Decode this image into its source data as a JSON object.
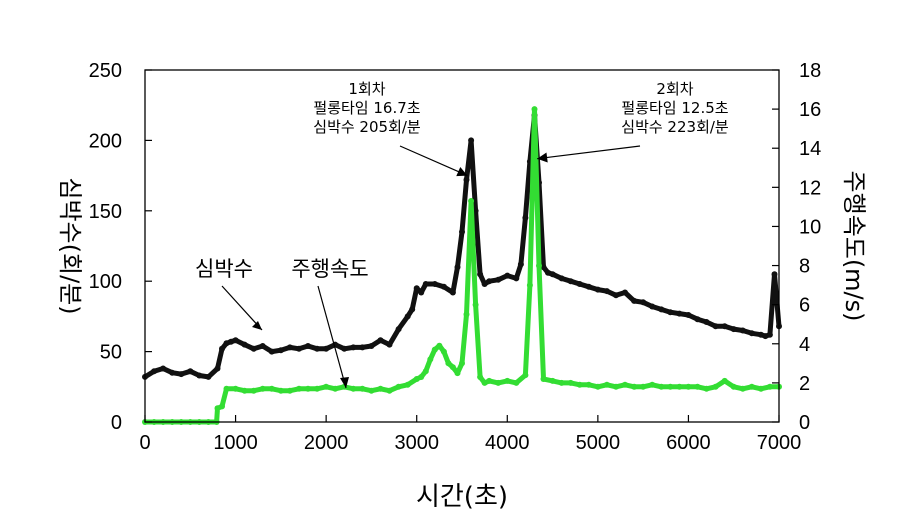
{
  "chart_data": {
    "type": "scatter",
    "xlabel": "시간(초)",
    "ylabel_left": "심박수(회/분)",
    "ylabel_right": "주행속도(m/s)",
    "xlim": [
      0,
      7000
    ],
    "ylim_left": [
      0,
      250
    ],
    "ylim_right": [
      0,
      18
    ],
    "xticks": [
      "0",
      "1000",
      "2000",
      "3000",
      "4000",
      "5000",
      "6000",
      "7000"
    ],
    "yticks_left": [
      "0",
      "50",
      "100",
      "150",
      "200",
      "250"
    ],
    "yticks_right": [
      "0",
      "2",
      "4",
      "6",
      "8",
      "10",
      "12",
      "14",
      "16",
      "18"
    ],
    "grid": false,
    "series": [
      {
        "name": "심박수",
        "axis": "left",
        "color": "#111111",
        "x": [
          0,
          100,
          200,
          300,
          400,
          500,
          600,
          700,
          800,
          850,
          900,
          950,
          1000,
          1100,
          1200,
          1300,
          1400,
          1500,
          1600,
          1700,
          1800,
          1900,
          2000,
          2100,
          2200,
          2300,
          2400,
          2500,
          2600,
          2700,
          2800,
          2900,
          2950,
          3000,
          3050,
          3100,
          3200,
          3300,
          3400,
          3450,
          3500,
          3550,
          3600,
          3650,
          3700,
          3750,
          3800,
          3900,
          4000,
          4100,
          4150,
          4200,
          4250,
          4300,
          4350,
          4400,
          4450,
          4500,
          4600,
          4700,
          4800,
          4900,
          5000,
          5100,
          5200,
          5300,
          5400,
          5500,
          5600,
          5700,
          5800,
          5900,
          6000,
          6100,
          6200,
          6300,
          6400,
          6500,
          6600,
          6700,
          6800,
          6850,
          6900,
          6950,
          7000
        ],
        "values": [
          32,
          36,
          38,
          35,
          34,
          36,
          33,
          32,
          38,
          52,
          56,
          57,
          58,
          55,
          52,
          54,
          50,
          51,
          53,
          52,
          54,
          52,
          52,
          55,
          52,
          53,
          53,
          54,
          58,
          55,
          66,
          75,
          80,
          95,
          92,
          98,
          98,
          96,
          92,
          110,
          135,
          172,
          200,
          150,
          105,
          98,
          100,
          101,
          104,
          102,
          112,
          145,
          185,
          218,
          170,
          110,
          106,
          105,
          102,
          100,
          98,
          96,
          94,
          93,
          90,
          92,
          86,
          85,
          82,
          80,
          78,
          77,
          76,
          73,
          71,
          68,
          68,
          66,
          65,
          63,
          62,
          61,
          62,
          105,
          68
        ]
      },
      {
        "name": "주행속도",
        "axis": "right",
        "color": "#33dd33",
        "x": [
          0,
          100,
          200,
          300,
          400,
          500,
          600,
          700,
          790,
          800,
          850,
          900,
          1000,
          1100,
          1200,
          1300,
          1400,
          1500,
          1600,
          1700,
          1800,
          1900,
          2000,
          2100,
          2200,
          2300,
          2400,
          2500,
          2600,
          2700,
          2800,
          2900,
          3000,
          3050,
          3100,
          3150,
          3200,
          3250,
          3300,
          3350,
          3400,
          3450,
          3500,
          3550,
          3600,
          3650,
          3700,
          3750,
          3800,
          3900,
          4000,
          4100,
          4200,
          4250,
          4300,
          4350,
          4400,
          4500,
          4600,
          4700,
          4800,
          4900,
          5000,
          5100,
          5200,
          5300,
          5400,
          5500,
          5600,
          5700,
          5800,
          5900,
          6000,
          6100,
          6200,
          6300,
          6400,
          6500,
          6600,
          6700,
          6800,
          6900,
          7000
        ],
        "values": [
          0,
          0,
          0,
          0,
          0,
          0,
          0,
          0,
          0,
          0.7,
          0.8,
          1.7,
          1.7,
          1.6,
          1.6,
          1.7,
          1.7,
          1.6,
          1.6,
          1.7,
          1.7,
          1.7,
          1.8,
          1.7,
          1.8,
          1.7,
          1.7,
          1.6,
          1.7,
          1.6,
          1.8,
          1.9,
          2.2,
          2.3,
          2.6,
          3.2,
          3.7,
          3.9,
          3.6,
          3.0,
          2.8,
          2.5,
          3.0,
          5.5,
          11.3,
          6.0,
          2.3,
          2.0,
          2.1,
          2.0,
          2.1,
          2.0,
          2.4,
          7.0,
          16.0,
          8.0,
          2.2,
          2.1,
          2.0,
          2.0,
          1.9,
          1.9,
          1.8,
          1.9,
          1.8,
          1.9,
          1.8,
          1.8,
          1.9,
          1.8,
          1.8,
          1.8,
          1.8,
          1.8,
          1.7,
          1.8,
          2.1,
          1.8,
          1.7,
          1.8,
          1.7,
          1.8,
          1.8
        ]
      }
    ],
    "series_labels": [
      {
        "id": "hr",
        "text": "심박수"
      },
      {
        "id": "speed",
        "text": "주행속도"
      }
    ],
    "annotations": [
      {
        "id": "run1",
        "lines": [
          "1회차",
          "펄롱타임 16.7초",
          "심박수 205회/분"
        ],
        "target_x": 3560,
        "target_y_left": 175
      },
      {
        "id": "run2",
        "lines": [
          "2회차",
          "펄롱타임 12.5초",
          "심박수 223회/분"
        ],
        "target_x": 4330,
        "target_y_left": 187
      }
    ]
  }
}
